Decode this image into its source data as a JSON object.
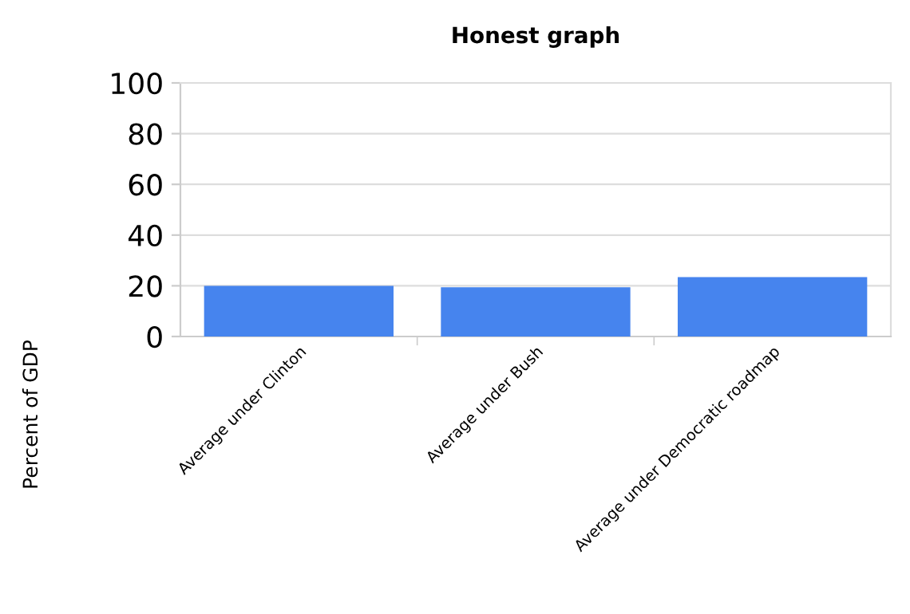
{
  "chart_data": {
    "type": "bar",
    "title": "Honest graph",
    "ylabel": "Percent of GDP",
    "categories": [
      "Average under Clinton",
      "Average under Bush",
      "Average under Democratic roadmap"
    ],
    "values": [
      20,
      19.4,
      23.4
    ],
    "color": "#4684ee",
    "ylim": [
      0,
      100
    ],
    "yticks": [
      0,
      20,
      40,
      60,
      80,
      100
    ],
    "grid": "y"
  }
}
